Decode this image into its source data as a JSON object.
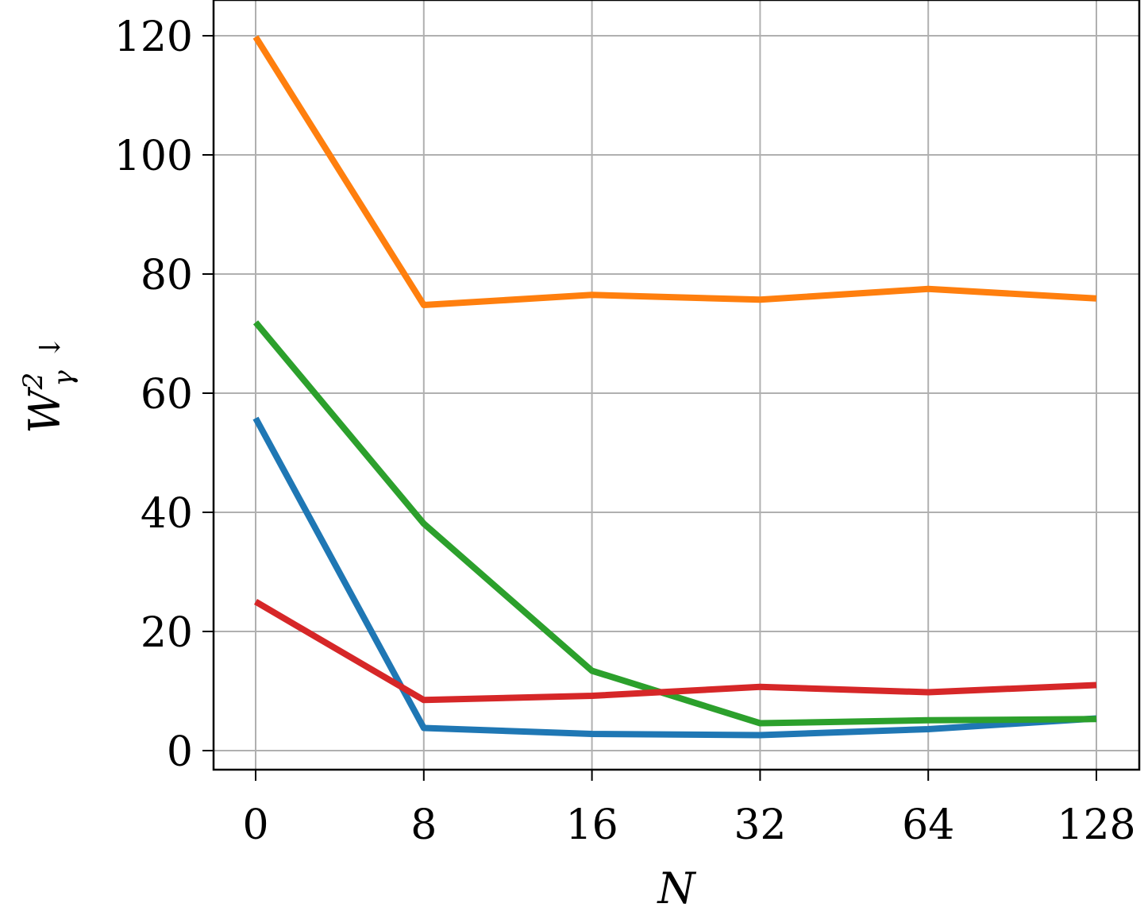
{
  "chart_data": {
    "type": "line",
    "xlabel": "N",
    "ylabel": {
      "base": "W",
      "sup": "2",
      "sub": "γ",
      "arrow": "↓"
    },
    "categories": [
      "0",
      "8",
      "16",
      "32",
      "64",
      "128"
    ],
    "yticks": [
      "0",
      "20",
      "40",
      "60",
      "80",
      "100",
      "120"
    ],
    "ylim": [
      -3,
      126
    ],
    "grid": true,
    "legend": "none",
    "series": [
      {
        "color": "#1f77b4",
        "values": [
          55.8,
          3.8,
          2.8,
          2.6,
          3.6,
          5.4
        ]
      },
      {
        "color": "#ff7f0e",
        "values": [
          119.8,
          74.8,
          76.5,
          75.7,
          77.5,
          75.9
        ]
      },
      {
        "color": "#2ca02c",
        "values": [
          71.9,
          38.1,
          13.4,
          4.6,
          5.1,
          5.3
        ]
      },
      {
        "color": "#d62728",
        "values": [
          25.0,
          8.5,
          9.2,
          10.7,
          9.8,
          11.0
        ]
      }
    ]
  }
}
